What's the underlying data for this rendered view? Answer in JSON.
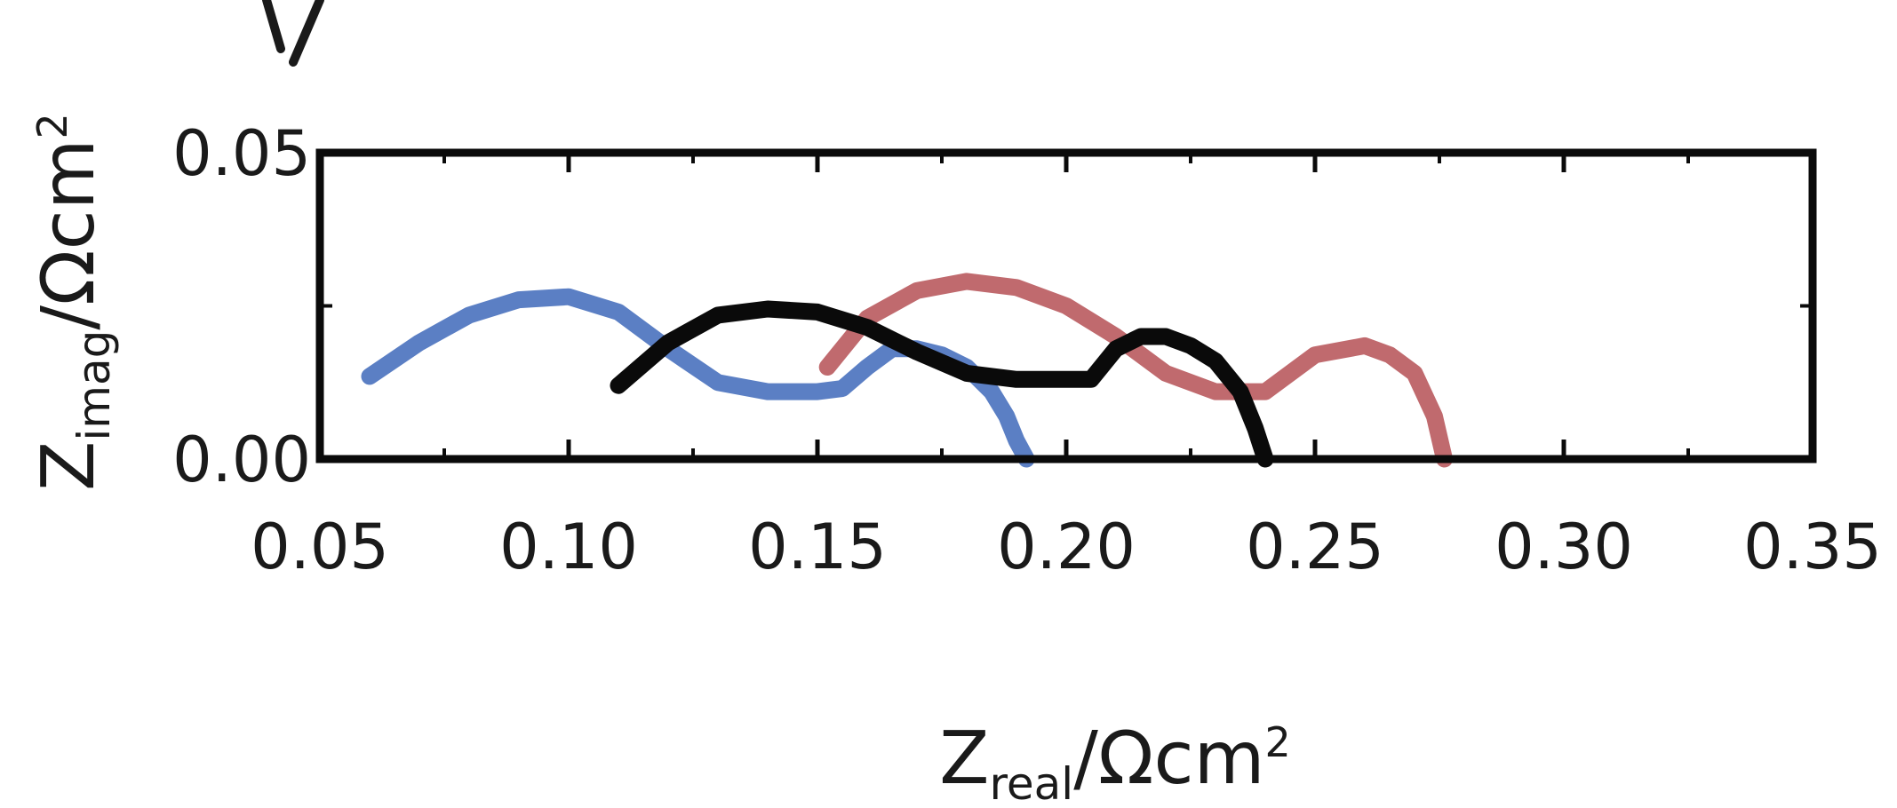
{
  "chart_data": {
    "type": "line",
    "title": "",
    "xlabel": {
      "base": "Z",
      "sub": "real",
      "unit": "/Ωcm",
      "sup": "2"
    },
    "ylabel": {
      "base": "Z",
      "sub": "imag",
      "unit": "/Ωcm",
      "sup": "2"
    },
    "xlim": [
      0.05,
      0.35
    ],
    "ylim": [
      0.0,
      0.05
    ],
    "x_ticks": [
      "0.05",
      "0.10",
      "0.15",
      "0.20",
      "0.25",
      "0.30",
      "0.35"
    ],
    "y_ticks": [
      "0.00",
      "0.05"
    ],
    "grid": false,
    "legend": "none",
    "series": [
      {
        "color": "#5b7fc4",
        "x": [
          0.06,
          0.07,
          0.08,
          0.09,
          0.1,
          0.11,
          0.12,
          0.13,
          0.14,
          0.15,
          0.155,
          0.16,
          0.165,
          0.17,
          0.175,
          0.18,
          0.185,
          0.188,
          0.19,
          0.192
        ],
        "y": [
          0.0135,
          0.019,
          0.0235,
          0.026,
          0.0265,
          0.024,
          0.018,
          0.0125,
          0.011,
          0.011,
          0.0115,
          0.015,
          0.018,
          0.018,
          0.017,
          0.015,
          0.011,
          0.007,
          0.003,
          0.0
        ]
      },
      {
        "color": "#c06a6e",
        "x": [
          0.152,
          0.16,
          0.17,
          0.18,
          0.19,
          0.2,
          0.21,
          0.22,
          0.23,
          0.24,
          0.25,
          0.26,
          0.265,
          0.27,
          0.274,
          0.276
        ],
        "y": [
          0.015,
          0.023,
          0.0275,
          0.029,
          0.028,
          0.025,
          0.02,
          0.014,
          0.011,
          0.011,
          0.017,
          0.0185,
          0.017,
          0.014,
          0.007,
          0.0
        ]
      },
      {
        "color": "#0a0a0a",
        "x": [
          0.11,
          0.12,
          0.13,
          0.14,
          0.15,
          0.16,
          0.17,
          0.18,
          0.19,
          0.2,
          0.205,
          0.21,
          0.215,
          0.22,
          0.225,
          0.23,
          0.235,
          0.238,
          0.24
        ],
        "y": [
          0.012,
          0.019,
          0.0235,
          0.0245,
          0.024,
          0.0215,
          0.0175,
          0.014,
          0.013,
          0.013,
          0.013,
          0.018,
          0.02,
          0.02,
          0.0185,
          0.016,
          0.011,
          0.005,
          0.0
        ]
      }
    ]
  }
}
